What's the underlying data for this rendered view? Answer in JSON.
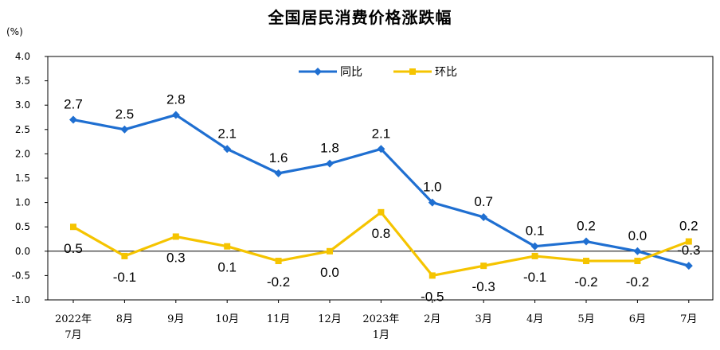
{
  "chart_data": {
    "type": "line",
    "title": "全国居民消费价格涨跌幅",
    "ylabel": "(%)",
    "xlabel": "",
    "ylim": [
      -1.0,
      4.0
    ],
    "yticks": [
      "4.0",
      "3.5",
      "3.0",
      "2.5",
      "2.0",
      "1.5",
      "1.0",
      "0.5",
      "0.0",
      "-0.5",
      "-1.0"
    ],
    "categories": [
      [
        "2022年",
        "7月"
      ],
      [
        "8月"
      ],
      [
        "9月"
      ],
      [
        "10月"
      ],
      [
        "11月"
      ],
      [
        "12月"
      ],
      [
        "2023年",
        "1月"
      ],
      [
        "2月"
      ],
      [
        "3月"
      ],
      [
        "4月"
      ],
      [
        "5月"
      ],
      [
        "6月"
      ],
      [
        "7月"
      ]
    ],
    "series": [
      {
        "name": "同比",
        "color": "#1f6fd1",
        "marker": "diamond",
        "values": [
          2.7,
          2.5,
          2.8,
          2.1,
          1.6,
          1.8,
          2.1,
          1.0,
          0.7,
          0.1,
          0.2,
          0.0,
          -0.3
        ],
        "labels": [
          "2.7",
          "2.5",
          "2.8",
          "2.1",
          "1.6",
          "1.8",
          "2.1",
          "1.0",
          "0.7",
          "0.1",
          "0.2",
          "0.0",
          "-0.3"
        ]
      },
      {
        "name": "环比",
        "color": "#f5c400",
        "marker": "square",
        "values": [
          0.5,
          -0.1,
          0.3,
          0.1,
          -0.2,
          0.0,
          0.8,
          -0.5,
          -0.3,
          -0.1,
          -0.2,
          -0.2,
          0.2
        ],
        "labels": [
          "0.5",
          "-0.1",
          "0.3",
          "0.1",
          "-0.2",
          "0.0",
          "0.8",
          "-0.5",
          "-0.3",
          "-0.1",
          "-0.2",
          "-0.2",
          "0.2"
        ]
      }
    ],
    "legend": "top-center",
    "grid": false
  }
}
